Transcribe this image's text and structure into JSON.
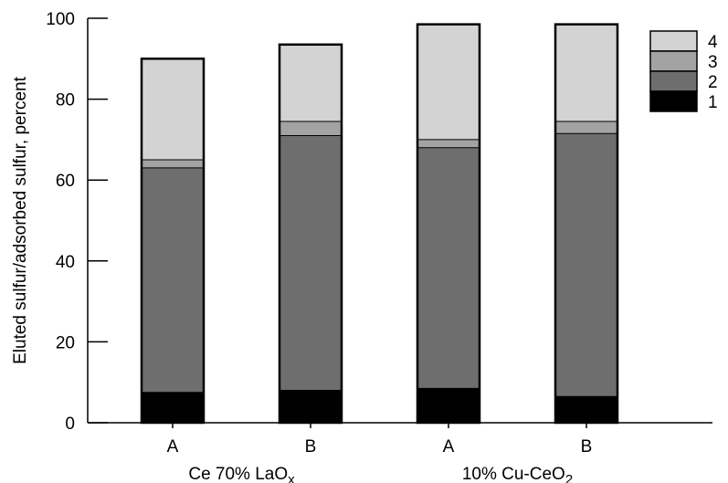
{
  "chart_data": {
    "type": "bar",
    "stacked": true,
    "ylabel": "Eluted sulfur/adsorbed sulfur, percent",
    "ylim": [
      0,
      100
    ],
    "yticks": [
      0,
      20,
      40,
      60,
      80,
      100
    ],
    "categories": [
      "A",
      "B",
      "A",
      "B"
    ],
    "groups": [
      {
        "label": "Ce 70% LaO",
        "subscript": "x",
        "categories": [
          "A",
          "B"
        ]
      },
      {
        "label": "10% Cu-CeO",
        "subscript": "2",
        "categories": [
          "A",
          "B"
        ]
      }
    ],
    "series": [
      {
        "name": "1",
        "color": "#000000",
        "values": [
          7.5,
          8.0,
          8.5,
          6.5
        ]
      },
      {
        "name": "2",
        "color": "#6e6e6e",
        "values": [
          55.5,
          63.0,
          59.5,
          65.0
        ]
      },
      {
        "name": "3",
        "color": "#a3a3a3",
        "values": [
          2.0,
          3.5,
          2.0,
          3.0
        ]
      },
      {
        "name": "4",
        "color": "#d3d3d3",
        "values": [
          25.0,
          19.0,
          28.5,
          24.0
        ]
      }
    ],
    "legend_position": "top-right",
    "grid": false
  }
}
